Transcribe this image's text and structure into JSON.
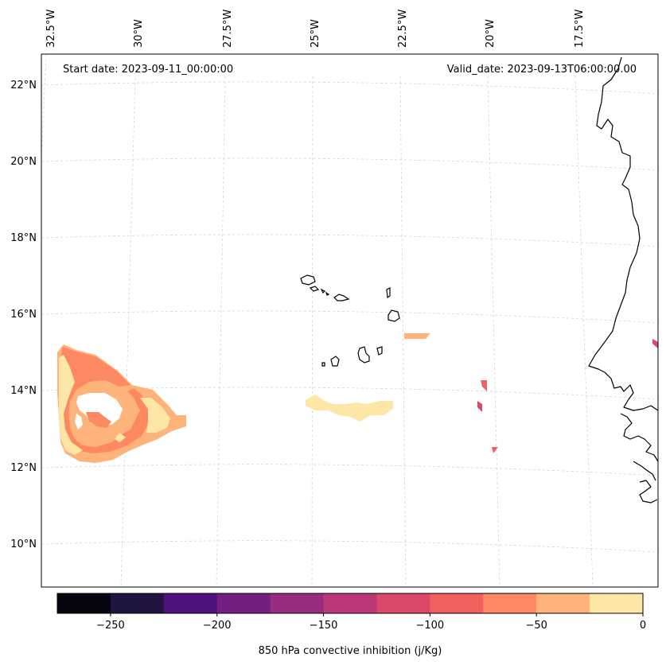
{
  "header": {
    "start_label": "Start date: 2023-09-11_00:00:00",
    "valid_label": "Valid_date: 2023-09-13T06:00:00.00"
  },
  "map": {
    "projection": "conic",
    "gridlines": true,
    "lon_labels": [
      "32.5°W",
      "30°W",
      "27.5°W",
      "25°W",
      "22.5°W",
      "20°W",
      "17.5°W"
    ],
    "lat_labels": [
      "22°N",
      "20°N",
      "18°N",
      "16°N",
      "14°N",
      "12°N",
      "10°N"
    ],
    "features": [
      "coastlines",
      "cabo-verde-islands",
      "west-africa-coast"
    ],
    "fill_regions": [
      "inhibition-zone-west",
      "inhibition-band-central",
      "inhibition-patch-north",
      "inhibition-patches-east"
    ]
  },
  "colorbar": {
    "label": "850 hPa convective inhibition (j/Kg)",
    "min": -275,
    "max": 0,
    "step": 25,
    "tick_values": [
      -250,
      -200,
      -150,
      -100,
      -50,
      0
    ],
    "tick_labels": [
      "−250",
      "−200",
      "−150",
      "−100",
      "−50",
      "0"
    ],
    "colors": [
      "#05040f",
      "#211440",
      "#4f117b",
      "#721f81",
      "#972c80",
      "#bb3978",
      "#dc4869",
      "#f1605d",
      "#fc8961",
      "#feb37b",
      "#fee7a6"
    ]
  }
}
